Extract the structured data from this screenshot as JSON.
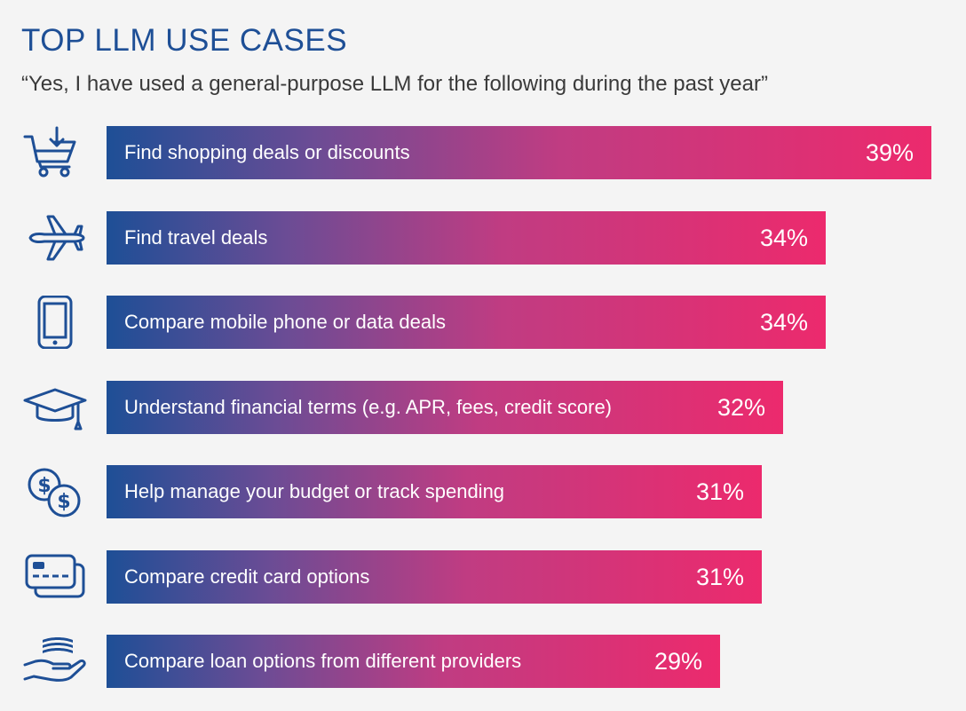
{
  "header": {
    "title": "TOP LLM USE CASES",
    "subtitle": "“Yes, I have used a general-purpose LLM for the following during the past year”"
  },
  "colors": {
    "title": "#1e4f96",
    "bar_start": "#1e4f96",
    "bar_end": "#ec2a6d",
    "icon": "#1e4f96"
  },
  "chart_data": {
    "type": "bar",
    "orientation": "horizontal",
    "title": "TOP LLM USE CASES",
    "subtitle": "“Yes, I have used a general-purpose LLM for the following during the past year”",
    "categories": [
      "Find shopping deals or discounts",
      "Find travel deals",
      "Compare mobile phone or data deals",
      "Understand financial terms (e.g. APR, fees, credit score)",
      "Help manage your budget or track spending",
      "Compare credit card options",
      "Compare loan options from different providers"
    ],
    "values": [
      39,
      34,
      34,
      32,
      31,
      31,
      29
    ],
    "value_labels": [
      "39%",
      "34%",
      "34%",
      "32%",
      "31%",
      "31%",
      "29%"
    ],
    "icons": [
      "shopping-cart-icon",
      "airplane-icon",
      "mobile-phone-icon",
      "graduation-cap-icon",
      "dollar-coins-icon",
      "credit-card-icon",
      "hand-money-icon"
    ],
    "unit": "%",
    "grid": false
  }
}
